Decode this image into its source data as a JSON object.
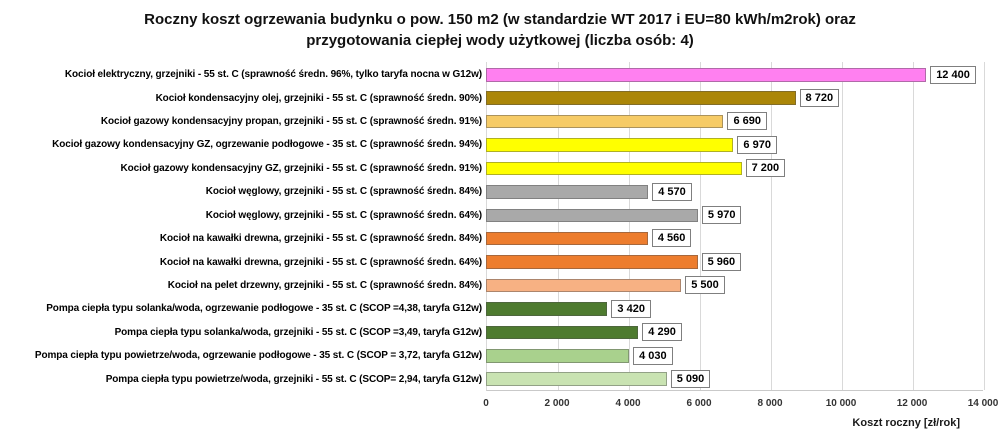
{
  "chart_data": {
    "type": "bar",
    "orientation": "horizontal",
    "title": "Roczny koszt ogrzewania budynku o pow. 150 m2 (w standardzie WT 2017 i EU=80 kWh/m2rok) oraz przygotowania ciepłej wody użytkowej (liczba osób: 4)",
    "title_lines": [
      "Roczny koszt ogrzewania budynku  o pow. 150 m2 (w standardzie WT 2017 i EU=80 kWh/m2rok) oraz",
      "przygotowania ciepłej wody użytkowej (liczba osób: 4)"
    ],
    "categories": [
      "Kocioł elektryczny, grzejniki - 55 st. C (sprawność średn. 96%, tylko taryfa nocna w G12w)",
      "Kocioł kondensacyjny olej, grzejniki - 55 st. C (sprawność średn. 90%)",
      "Kocioł gazowy kondensacyjny propan, grzejniki - 55 st. C (sprawność średn. 91%)",
      "Kocioł gazowy kondensacyjny GZ, ogrzewanie podłogowe - 35 st. C (sprawność średn. 94%)",
      "Kocioł gazowy kondensacyjny GZ, grzejniki - 55 st. C (sprawność średn. 91%)",
      "Kocioł węglowy, grzejniki - 55 st. C (sprawność średn. 84%)",
      "Kocioł węglowy, grzejniki - 55 st. C (sprawność średn. 64%)",
      "Kocioł na kawałki drewna, grzejniki - 55 st. C (sprawność średn. 84%)",
      "Kocioł na kawałki drewna, grzejniki - 55 st. C (sprawność średn. 64%)",
      "Kocioł na pelet drzewny, grzejniki - 55 st. C (sprawność średn. 84%)",
      "Pompa ciepła typu solanka/woda, ogrzewanie podłogowe - 35 st. C (SCOP =4,38, taryfa G12w)",
      "Pompa ciepła typu solanka/woda, grzejniki - 55 st. C (SCOP =3,49, taryfa G12w)",
      "Pompa ciepła typu powietrze/woda, ogrzewanie podłogowe - 35 st. C (SCOP = 3,72, taryfa G12w)",
      "Pompa ciepła typu powietrze/woda, grzejniki - 55 st. C (SCOP= 2,94, taryfa G12w)"
    ],
    "values": [
      12400,
      8720,
      6690,
      6970,
      7200,
      4570,
      5970,
      4560,
      5960,
      5500,
      3420,
      4290,
      4030,
      5090
    ],
    "value_labels": [
      "12 400",
      "8 720",
      "6 690",
      "6 970",
      "7 200",
      "4 570",
      "5 970",
      "4 560",
      "5 960",
      "5 500",
      "3 420",
      "4 290",
      "4 030",
      "5 090"
    ],
    "bar_colors": [
      "#FF80F0",
      "#AB8608",
      "#F6CB66",
      "#FFFF00",
      "#FFFF00",
      "#A9A9A9",
      "#A9A9A9",
      "#ED7D2E",
      "#ED7D2E",
      "#F7B183",
      "#4E7B2F",
      "#4E7B2F",
      "#A9D18D",
      "#C9E3B2"
    ],
    "xlabel": "Koszt roczny [zł/rok]",
    "xlim": [
      0,
      14000
    ],
    "x_ticks": [
      0,
      2000,
      4000,
      6000,
      8000,
      10000,
      12000,
      14000
    ],
    "x_tick_labels": [
      "0",
      "2 000",
      "4 000",
      "6 000",
      "8 000",
      "10 000",
      "12 000",
      "14 000"
    ],
    "grid": "vertical major gridlines on",
    "legend": "none"
  },
  "colors": {
    "grid": "#D9D9D9",
    "axis": "#C9C9C9",
    "value_box_border": "#7F7F7F",
    "text": "#000000"
  }
}
